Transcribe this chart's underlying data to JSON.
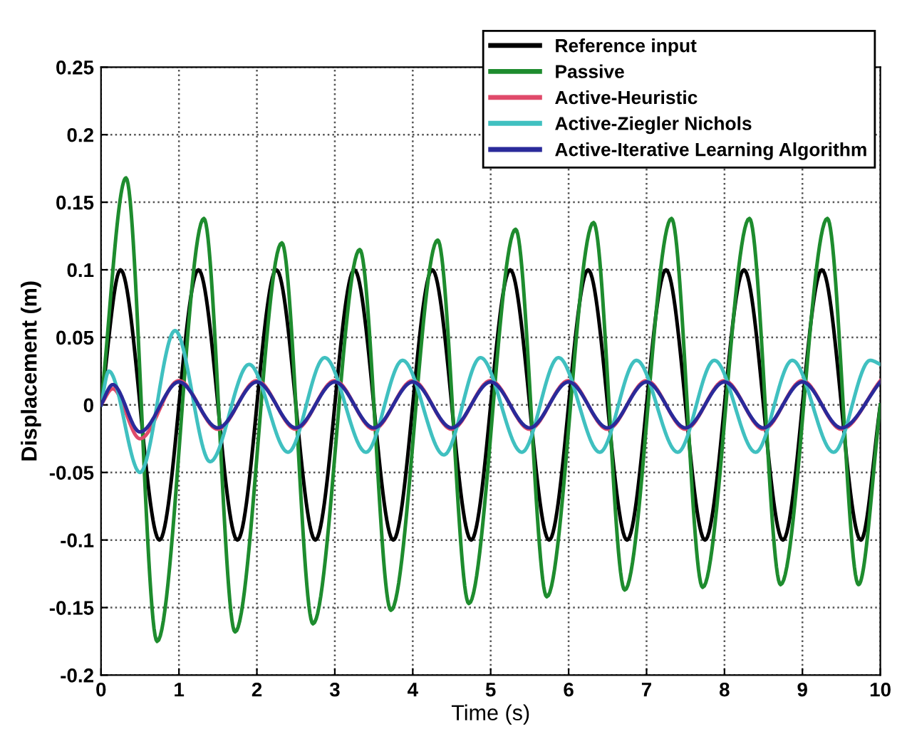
{
  "chart_data": {
    "type": "line",
    "xlabel": "Time (s)",
    "ylabel": "Displacement (m)",
    "xlim": [
      0,
      10
    ],
    "ylim": [
      -0.2,
      0.25
    ],
    "xticks": [
      0,
      1,
      2,
      3,
      4,
      5,
      6,
      7,
      8,
      9,
      10
    ],
    "yticks": [
      -0.2,
      -0.15,
      -0.1,
      -0.05,
      0,
      0.05,
      0.1,
      0.15,
      0.2,
      0.25
    ],
    "grid": true,
    "legend": "top right",
    "line_style": "solid",
    "marker": "none",
    "series": [
      {
        "name": "Reference input",
        "color": "#000000",
        "x": [
          0,
          0.25,
          0.75,
          1.25,
          1.75,
          2.25,
          2.75,
          3.25,
          3.75,
          4.25,
          4.75,
          5.25,
          5.75,
          6.25,
          6.75,
          7.25,
          7.75,
          8.25,
          8.75,
          9.25,
          9.75,
          10
        ],
        "values": [
          0,
          0.1,
          -0.1,
          0.1,
          -0.1,
          0.1,
          -0.1,
          0.1,
          -0.1,
          0.1,
          -0.1,
          0.1,
          -0.1,
          0.1,
          -0.1,
          0.1,
          -0.1,
          0.1,
          -0.1,
          0.1,
          -0.1,
          0
        ]
      },
      {
        "name": "Passive",
        "color": "#1e8c2e",
        "x": [
          0,
          0.32,
          0.72,
          1.32,
          1.72,
          2.32,
          2.72,
          3.32,
          3.72,
          4.32,
          4.72,
          5.32,
          5.72,
          6.32,
          6.72,
          7.32,
          7.72,
          8.32,
          8.72,
          9.32,
          9.72,
          10
        ],
        "values": [
          0,
          0.168,
          -0.175,
          0.138,
          -0.168,
          0.12,
          -0.162,
          0.115,
          -0.152,
          0.122,
          -0.147,
          0.13,
          -0.142,
          0.135,
          -0.137,
          0.138,
          -0.135,
          0.138,
          -0.133,
          0.138,
          -0.133,
          0
        ]
      },
      {
        "name": "Active-Heuristic",
        "color": "#e04a6a",
        "x": [
          0,
          0.15,
          0.5,
          1.0,
          1.5,
          2.0,
          2.5,
          3.0,
          3.5,
          4.0,
          4.5,
          5.0,
          5.5,
          6.0,
          6.5,
          7.0,
          7.5,
          8.0,
          8.5,
          9.0,
          9.5,
          10
        ],
        "values": [
          0,
          0.012,
          -0.025,
          0.018,
          -0.018,
          0.018,
          -0.018,
          0.018,
          -0.018,
          0.018,
          -0.018,
          0.018,
          -0.018,
          0.018,
          -0.018,
          0.018,
          -0.018,
          0.018,
          -0.018,
          0.018,
          -0.018,
          0.018
        ]
      },
      {
        "name": "Active-Ziegler Nichols",
        "color": "#40c0c0",
        "x": [
          0,
          0.1,
          0.5,
          0.95,
          1.4,
          1.9,
          2.4,
          2.87,
          3.4,
          3.87,
          4.4,
          4.87,
          5.4,
          5.87,
          6.4,
          6.87,
          7.4,
          7.87,
          8.4,
          8.87,
          9.4,
          9.87,
          10
        ],
        "values": [
          0,
          0.025,
          -0.05,
          0.055,
          -0.042,
          0.03,
          -0.035,
          0.035,
          -0.035,
          0.033,
          -0.037,
          0.035,
          -0.035,
          0.035,
          -0.035,
          0.033,
          -0.035,
          0.033,
          -0.035,
          0.033,
          -0.035,
          0.033,
          0.03
        ]
      },
      {
        "name": "Active-Iterative Learning Algorithm",
        "color": "#2a2a9a",
        "x": [
          0,
          0.15,
          0.5,
          1.0,
          1.5,
          2.0,
          2.5,
          3.0,
          3.5,
          4.0,
          4.5,
          5.0,
          5.5,
          6.0,
          6.5,
          7.0,
          7.5,
          8.0,
          8.5,
          9.0,
          9.5,
          10
        ],
        "values": [
          0,
          0.015,
          -0.02,
          0.017,
          -0.017,
          0.017,
          -0.017,
          0.017,
          -0.017,
          0.017,
          -0.017,
          0.017,
          -0.017,
          0.017,
          -0.017,
          0.017,
          -0.017,
          0.017,
          -0.017,
          0.017,
          -0.017,
          0.017
        ]
      }
    ]
  }
}
